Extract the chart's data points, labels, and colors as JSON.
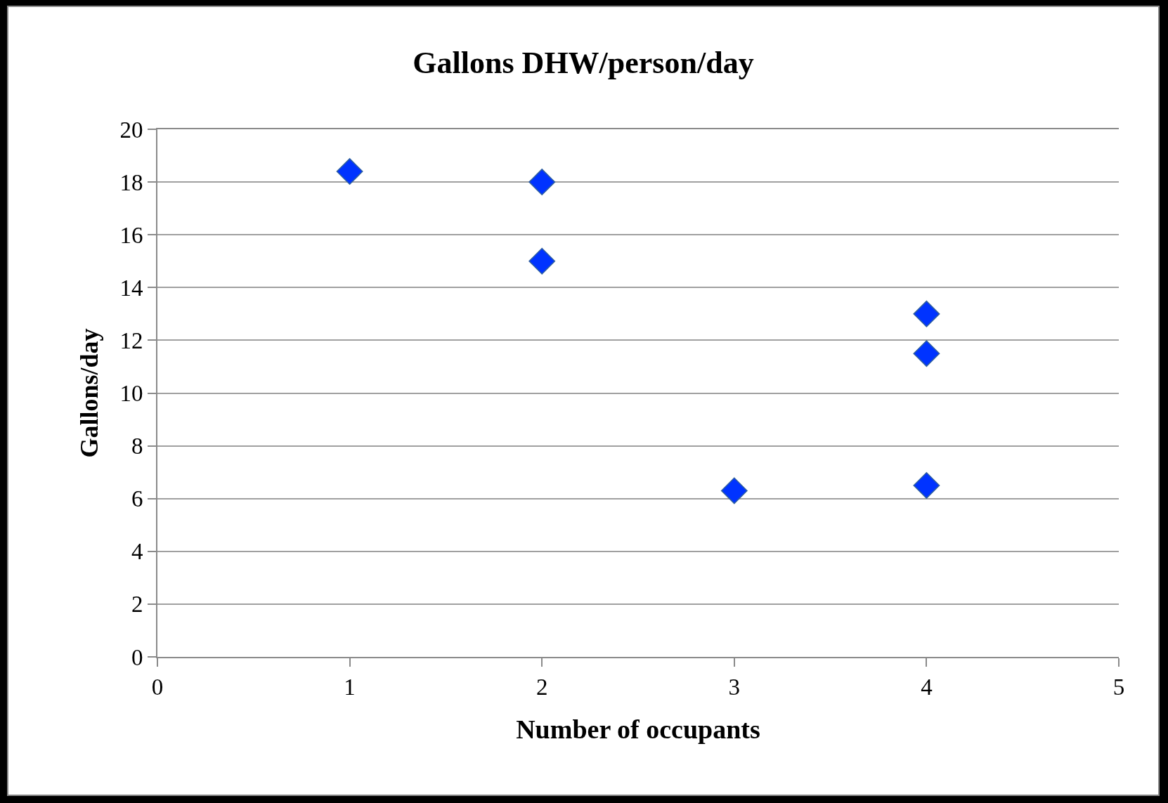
{
  "chart_data": {
    "type": "scatter",
    "title": "Gallons DHW/person/day",
    "xlabel": "Number of occupants",
    "ylabel": "Gallons/day",
    "x": [
      1,
      2,
      2,
      3,
      4,
      4,
      4
    ],
    "values": [
      18.4,
      18.0,
      15.0,
      6.3,
      13.0,
      11.5,
      6.5
    ],
    "color": "#0033ff",
    "xlim": [
      0,
      5
    ],
    "xticks": [
      0,
      1,
      2,
      3,
      4,
      5
    ],
    "ylim": [
      0,
      20
    ],
    "yticks": [
      0,
      2,
      4,
      6,
      8,
      10,
      12,
      14,
      16,
      18,
      20
    ],
    "grid": "y",
    "marker": "diamond",
    "legend": false
  }
}
